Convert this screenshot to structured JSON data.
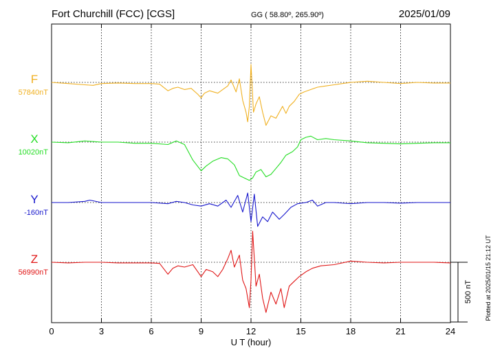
{
  "header": {
    "station": "Fort Churchill (FCC)  [CGS]",
    "coords": "GG ( 58.80º, 265.90º)",
    "date": "2025/01/09"
  },
  "footer": {
    "plotted": "Plotted at 2025/01/15 21:12 UT"
  },
  "scale_bar": {
    "label": "500 nT",
    "value_nT": 500
  },
  "colors": {
    "F": "#f0b020",
    "X": "#22dd22",
    "Y": "#1515cc",
    "Z": "#e01515",
    "grid": "#000000"
  },
  "chart_data": {
    "type": "line",
    "title": "",
    "xlabel": "U T (hour)",
    "ylabel": "",
    "xlim": [
      0,
      24
    ],
    "x_ticks": [
      "0",
      "3",
      "6",
      "9",
      "12",
      "15",
      "18",
      "21",
      "24"
    ],
    "x_tick_values": [
      0,
      3,
      6,
      9,
      12,
      15,
      18,
      21,
      24
    ],
    "grid": true,
    "series": [
      {
        "name": "F",
        "baseline_label": "57840nT",
        "color": "#f0b020",
        "points": [
          [
            0,
            0
          ],
          [
            1,
            -10
          ],
          [
            2,
            -20
          ],
          [
            2.5,
            -25
          ],
          [
            3,
            -10
          ],
          [
            4,
            -5
          ],
          [
            5,
            -10
          ],
          [
            6,
            -10
          ],
          [
            6.5,
            -15
          ],
          [
            7,
            -70
          ],
          [
            7.3,
            -50
          ],
          [
            7.6,
            -40
          ],
          [
            8,
            -60
          ],
          [
            8.4,
            -50
          ],
          [
            8.8,
            -100
          ],
          [
            9,
            -130
          ],
          [
            9.2,
            -90
          ],
          [
            9.5,
            -70
          ],
          [
            10,
            -90
          ],
          [
            10.3,
            -60
          ],
          [
            10.6,
            -30
          ],
          [
            10.8,
            20
          ],
          [
            11.1,
            -80
          ],
          [
            11.3,
            30
          ],
          [
            11.5,
            -150
          ],
          [
            11.7,
            -250
          ],
          [
            11.8,
            -330
          ],
          [
            11.9,
            -200
          ],
          [
            12,
            150
          ],
          [
            12.15,
            -250
          ],
          [
            12.3,
            -180
          ],
          [
            12.5,
            -120
          ],
          [
            12.7,
            -250
          ],
          [
            12.9,
            -360
          ],
          [
            13.2,
            -280
          ],
          [
            13.5,
            -300
          ],
          [
            13.7,
            -250
          ],
          [
            13.9,
            -200
          ],
          [
            14.1,
            -260
          ],
          [
            14.3,
            -200
          ],
          [
            14.6,
            -160
          ],
          [
            14.9,
            -100
          ],
          [
            15.2,
            -80
          ],
          [
            15.6,
            -60
          ],
          [
            16,
            -40
          ],
          [
            16.5,
            -30
          ],
          [
            17,
            -20
          ],
          [
            17.5,
            -10
          ],
          [
            18,
            0
          ],
          [
            19,
            10
          ],
          [
            20,
            0
          ],
          [
            21,
            -10
          ],
          [
            22,
            0
          ],
          [
            23,
            -5
          ],
          [
            24,
            -5
          ]
        ]
      },
      {
        "name": "X",
        "baseline_label": "10020nT",
        "color": "#22dd22",
        "points": [
          [
            0,
            0
          ],
          [
            1,
            -5
          ],
          [
            2,
            10
          ],
          [
            3,
            0
          ],
          [
            4,
            0
          ],
          [
            5,
            -10
          ],
          [
            6,
            -10
          ],
          [
            7,
            -20
          ],
          [
            7.5,
            10
          ],
          [
            8,
            -20
          ],
          [
            8.5,
            -150
          ],
          [
            9,
            -240
          ],
          [
            9.3,
            -200
          ],
          [
            9.7,
            -160
          ],
          [
            10.2,
            -130
          ],
          [
            10.6,
            -140
          ],
          [
            11,
            -190
          ],
          [
            11.3,
            -280
          ],
          [
            11.6,
            -300
          ],
          [
            11.9,
            -320
          ],
          [
            12.1,
            -300
          ],
          [
            12.3,
            -250
          ],
          [
            12.6,
            -230
          ],
          [
            12.9,
            -290
          ],
          [
            13.2,
            -270
          ],
          [
            13.5,
            -220
          ],
          [
            13.8,
            -170
          ],
          [
            14.1,
            -110
          ],
          [
            14.5,
            -80
          ],
          [
            14.8,
            -40
          ],
          [
            15,
            20
          ],
          [
            15.3,
            40
          ],
          [
            15.6,
            50
          ],
          [
            16,
            20
          ],
          [
            16.5,
            30
          ],
          [
            17,
            20
          ],
          [
            18,
            10
          ],
          [
            19,
            -5
          ],
          [
            20,
            -10
          ],
          [
            21,
            -15
          ],
          [
            22,
            -10
          ],
          [
            23,
            -5
          ],
          [
            24,
            -5
          ]
        ]
      },
      {
        "name": "Y",
        "baseline_label": "-160nT",
        "color": "#1515cc",
        "points": [
          [
            0,
            0
          ],
          [
            1,
            0
          ],
          [
            2,
            10
          ],
          [
            2.3,
            20
          ],
          [
            3,
            0
          ],
          [
            4,
            0
          ],
          [
            5,
            0
          ],
          [
            6,
            0
          ],
          [
            7,
            -10
          ],
          [
            7.5,
            10
          ],
          [
            8,
            0
          ],
          [
            8.5,
            -20
          ],
          [
            9,
            -30
          ],
          [
            9.5,
            -10
          ],
          [
            10,
            -30
          ],
          [
            10.5,
            20
          ],
          [
            10.8,
            -40
          ],
          [
            11.2,
            60
          ],
          [
            11.5,
            -80
          ],
          [
            11.8,
            80
          ],
          [
            12,
            -160
          ],
          [
            12.2,
            70
          ],
          [
            12.4,
            -200
          ],
          [
            12.7,
            -120
          ],
          [
            13,
            -160
          ],
          [
            13.3,
            -80
          ],
          [
            13.7,
            -140
          ],
          [
            14,
            -100
          ],
          [
            14.4,
            -40
          ],
          [
            14.8,
            -10
          ],
          [
            15.3,
            0
          ],
          [
            15.7,
            20
          ],
          [
            16,
            -30
          ],
          [
            16.5,
            0
          ],
          [
            17,
            0
          ],
          [
            18,
            -10
          ],
          [
            19,
            0
          ],
          [
            20,
            0
          ],
          [
            21,
            -5
          ],
          [
            22,
            0
          ],
          [
            23,
            0
          ],
          [
            24,
            0
          ]
        ]
      },
      {
        "name": "Z",
        "baseline_label": "56990nT",
        "color": "#e01515",
        "points": [
          [
            0,
            0
          ],
          [
            1,
            -5
          ],
          [
            2,
            0
          ],
          [
            3,
            0
          ],
          [
            4,
            -5
          ],
          [
            5,
            -5
          ],
          [
            6,
            -5
          ],
          [
            6.5,
            -10
          ],
          [
            7,
            -100
          ],
          [
            7.3,
            -50
          ],
          [
            7.6,
            -30
          ],
          [
            8,
            -40
          ],
          [
            8.5,
            -20
          ],
          [
            8.8,
            -80
          ],
          [
            9,
            -120
          ],
          [
            9.3,
            -60
          ],
          [
            9.7,
            -80
          ],
          [
            10,
            -120
          ],
          [
            10.3,
            -60
          ],
          [
            10.6,
            30
          ],
          [
            10.8,
            100
          ],
          [
            11,
            -40
          ],
          [
            11.3,
            60
          ],
          [
            11.5,
            -150
          ],
          [
            11.7,
            -220
          ],
          [
            11.9,
            -380
          ],
          [
            12,
            -150
          ],
          [
            12.1,
            260
          ],
          [
            12.3,
            -200
          ],
          [
            12.5,
            -100
          ],
          [
            12.7,
            -300
          ],
          [
            12.9,
            -420
          ],
          [
            13.2,
            -250
          ],
          [
            13.5,
            -350
          ],
          [
            13.8,
            -220
          ],
          [
            14,
            -380
          ],
          [
            14.3,
            -200
          ],
          [
            14.6,
            -160
          ],
          [
            14.9,
            -120
          ],
          [
            15.3,
            -80
          ],
          [
            15.7,
            -50
          ],
          [
            16.2,
            -30
          ],
          [
            17,
            -20
          ],
          [
            18,
            10
          ],
          [
            19,
            0
          ],
          [
            20,
            -5
          ],
          [
            21,
            0
          ],
          [
            22,
            0
          ],
          [
            23,
            0
          ],
          [
            24,
            -5
          ]
        ]
      }
    ]
  }
}
